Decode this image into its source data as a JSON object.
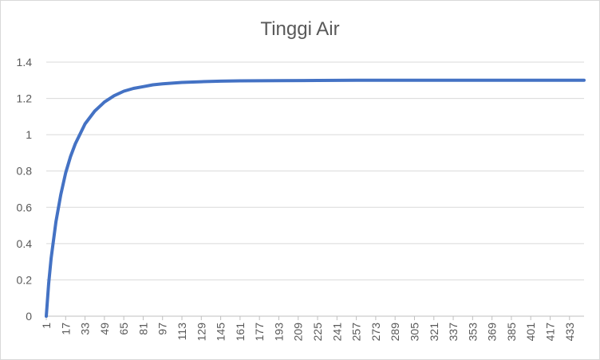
{
  "chart_data": {
    "type": "line",
    "title": "Tinggi Air",
    "xlabel": "",
    "ylabel": "",
    "x_range": [
      1,
      445
    ],
    "ylim": [
      0,
      1.4
    ],
    "y_ticks": [
      "0",
      "0.2",
      "0.4",
      "0.6",
      "0.8",
      "1",
      "1.2",
      "1.4"
    ],
    "x_ticks": [
      1,
      17,
      33,
      49,
      65,
      81,
      97,
      113,
      129,
      145,
      161,
      177,
      193,
      209,
      225,
      241,
      257,
      273,
      289,
      305,
      321,
      337,
      353,
      369,
      385,
      401,
      417,
      433
    ],
    "grid": true,
    "legend": "none",
    "color": "#4472c4",
    "series": [
      {
        "x": [
          1,
          3,
          5,
          9,
          13,
          17,
          21,
          25,
          33,
          41,
          49,
          57,
          65,
          73,
          81,
          89,
          97,
          113,
          129,
          145,
          161,
          193,
          225,
          257,
          289,
          321,
          353,
          385,
          417,
          445
        ],
        "y": [
          0,
          0.18,
          0.32,
          0.52,
          0.67,
          0.79,
          0.88,
          0.95,
          1.06,
          1.13,
          1.18,
          1.215,
          1.24,
          1.255,
          1.265,
          1.275,
          1.28,
          1.288,
          1.292,
          1.295,
          1.297,
          1.298,
          1.299,
          1.3,
          1.3,
          1.3,
          1.3,
          1.3,
          1.3,
          1.3
        ]
      }
    ]
  }
}
